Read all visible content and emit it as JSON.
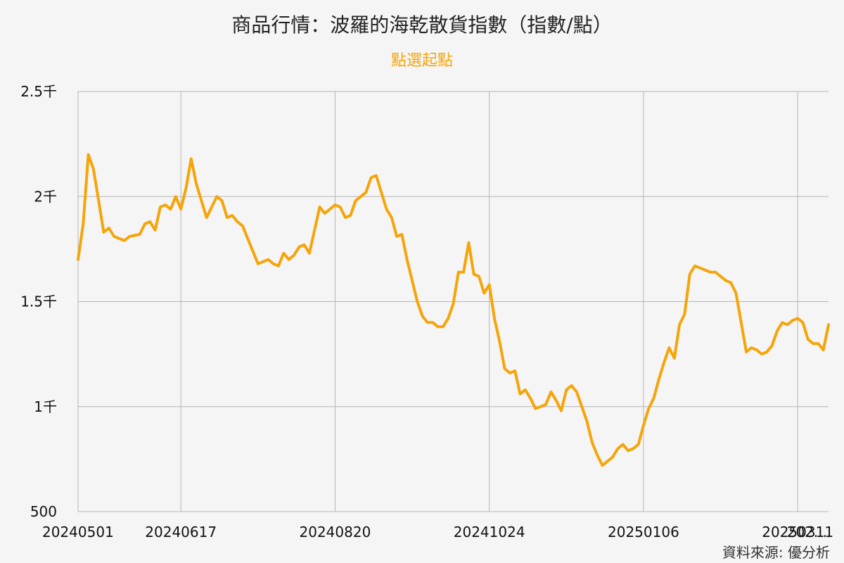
{
  "header": {
    "title": "商品行情：波羅的海乾散貨指數（指數/點）",
    "subtitle": "點選起點"
  },
  "footer": {
    "source": "資料來源: 優分析"
  },
  "colors": {
    "line": "#f5a50a",
    "grid": "#b5b5b5",
    "background": "#f5f5f5"
  },
  "chart_data": {
    "type": "line",
    "title": "商品行情：波羅的海乾散貨指數（指數/點）",
    "ylim": [
      500,
      2500
    ],
    "yticks": [
      500,
      1000,
      1500,
      2000,
      2500
    ],
    "ytick_labels": [
      "500",
      "1千",
      "1.5千",
      "2千",
      "2.5千"
    ],
    "xtick_labels": [
      "20240501",
      "20240617",
      "20240820",
      "20241024",
      "20250106",
      "20250311",
      "202..."
    ],
    "grid": true,
    "series": [
      {
        "values": [
          1700,
          1870,
          2200,
          2130,
          1980,
          1830,
          1850,
          1810,
          1800,
          1790,
          1810,
          1815,
          1820,
          1870,
          1880,
          1840,
          1950,
          1960,
          1940,
          2000,
          1940,
          2040,
          2180,
          2060,
          1980,
          1900,
          1950,
          2000,
          1980,
          1900,
          1910,
          1880,
          1860,
          1800,
          1740,
          1680,
          1690,
          1700,
          1680,
          1670,
          1730,
          1700,
          1720,
          1760,
          1770,
          1730,
          1840,
          1950,
          1920,
          1940,
          1960,
          1950,
          1900,
          1910,
          1980,
          2000,
          2020,
          2090,
          2100,
          2020,
          1940,
          1900,
          1810,
          1820,
          1700,
          1600,
          1500,
          1430,
          1400,
          1400,
          1380,
          1380,
          1420,
          1490,
          1640,
          1640,
          1780,
          1630,
          1620,
          1540,
          1580,
          1420,
          1310,
          1180,
          1160,
          1170,
          1060,
          1080,
          1040,
          990,
          1000,
          1010,
          1070,
          1030,
          980,
          1080,
          1100,
          1070,
          1000,
          930,
          830,
          770,
          720,
          740,
          760,
          800,
          820,
          790,
          800,
          820,
          910,
          990,
          1040,
          1130,
          1210,
          1280,
          1230,
          1390,
          1440,
          1630,
          1670,
          1660,
          1650,
          1640,
          1640,
          1620,
          1600,
          1590,
          1540,
          1400,
          1260,
          1280,
          1270,
          1250,
          1260,
          1290,
          1360,
          1400,
          1390,
          1410,
          1420,
          1400,
          1320,
          1300,
          1300,
          1270,
          1390
        ]
      }
    ]
  }
}
